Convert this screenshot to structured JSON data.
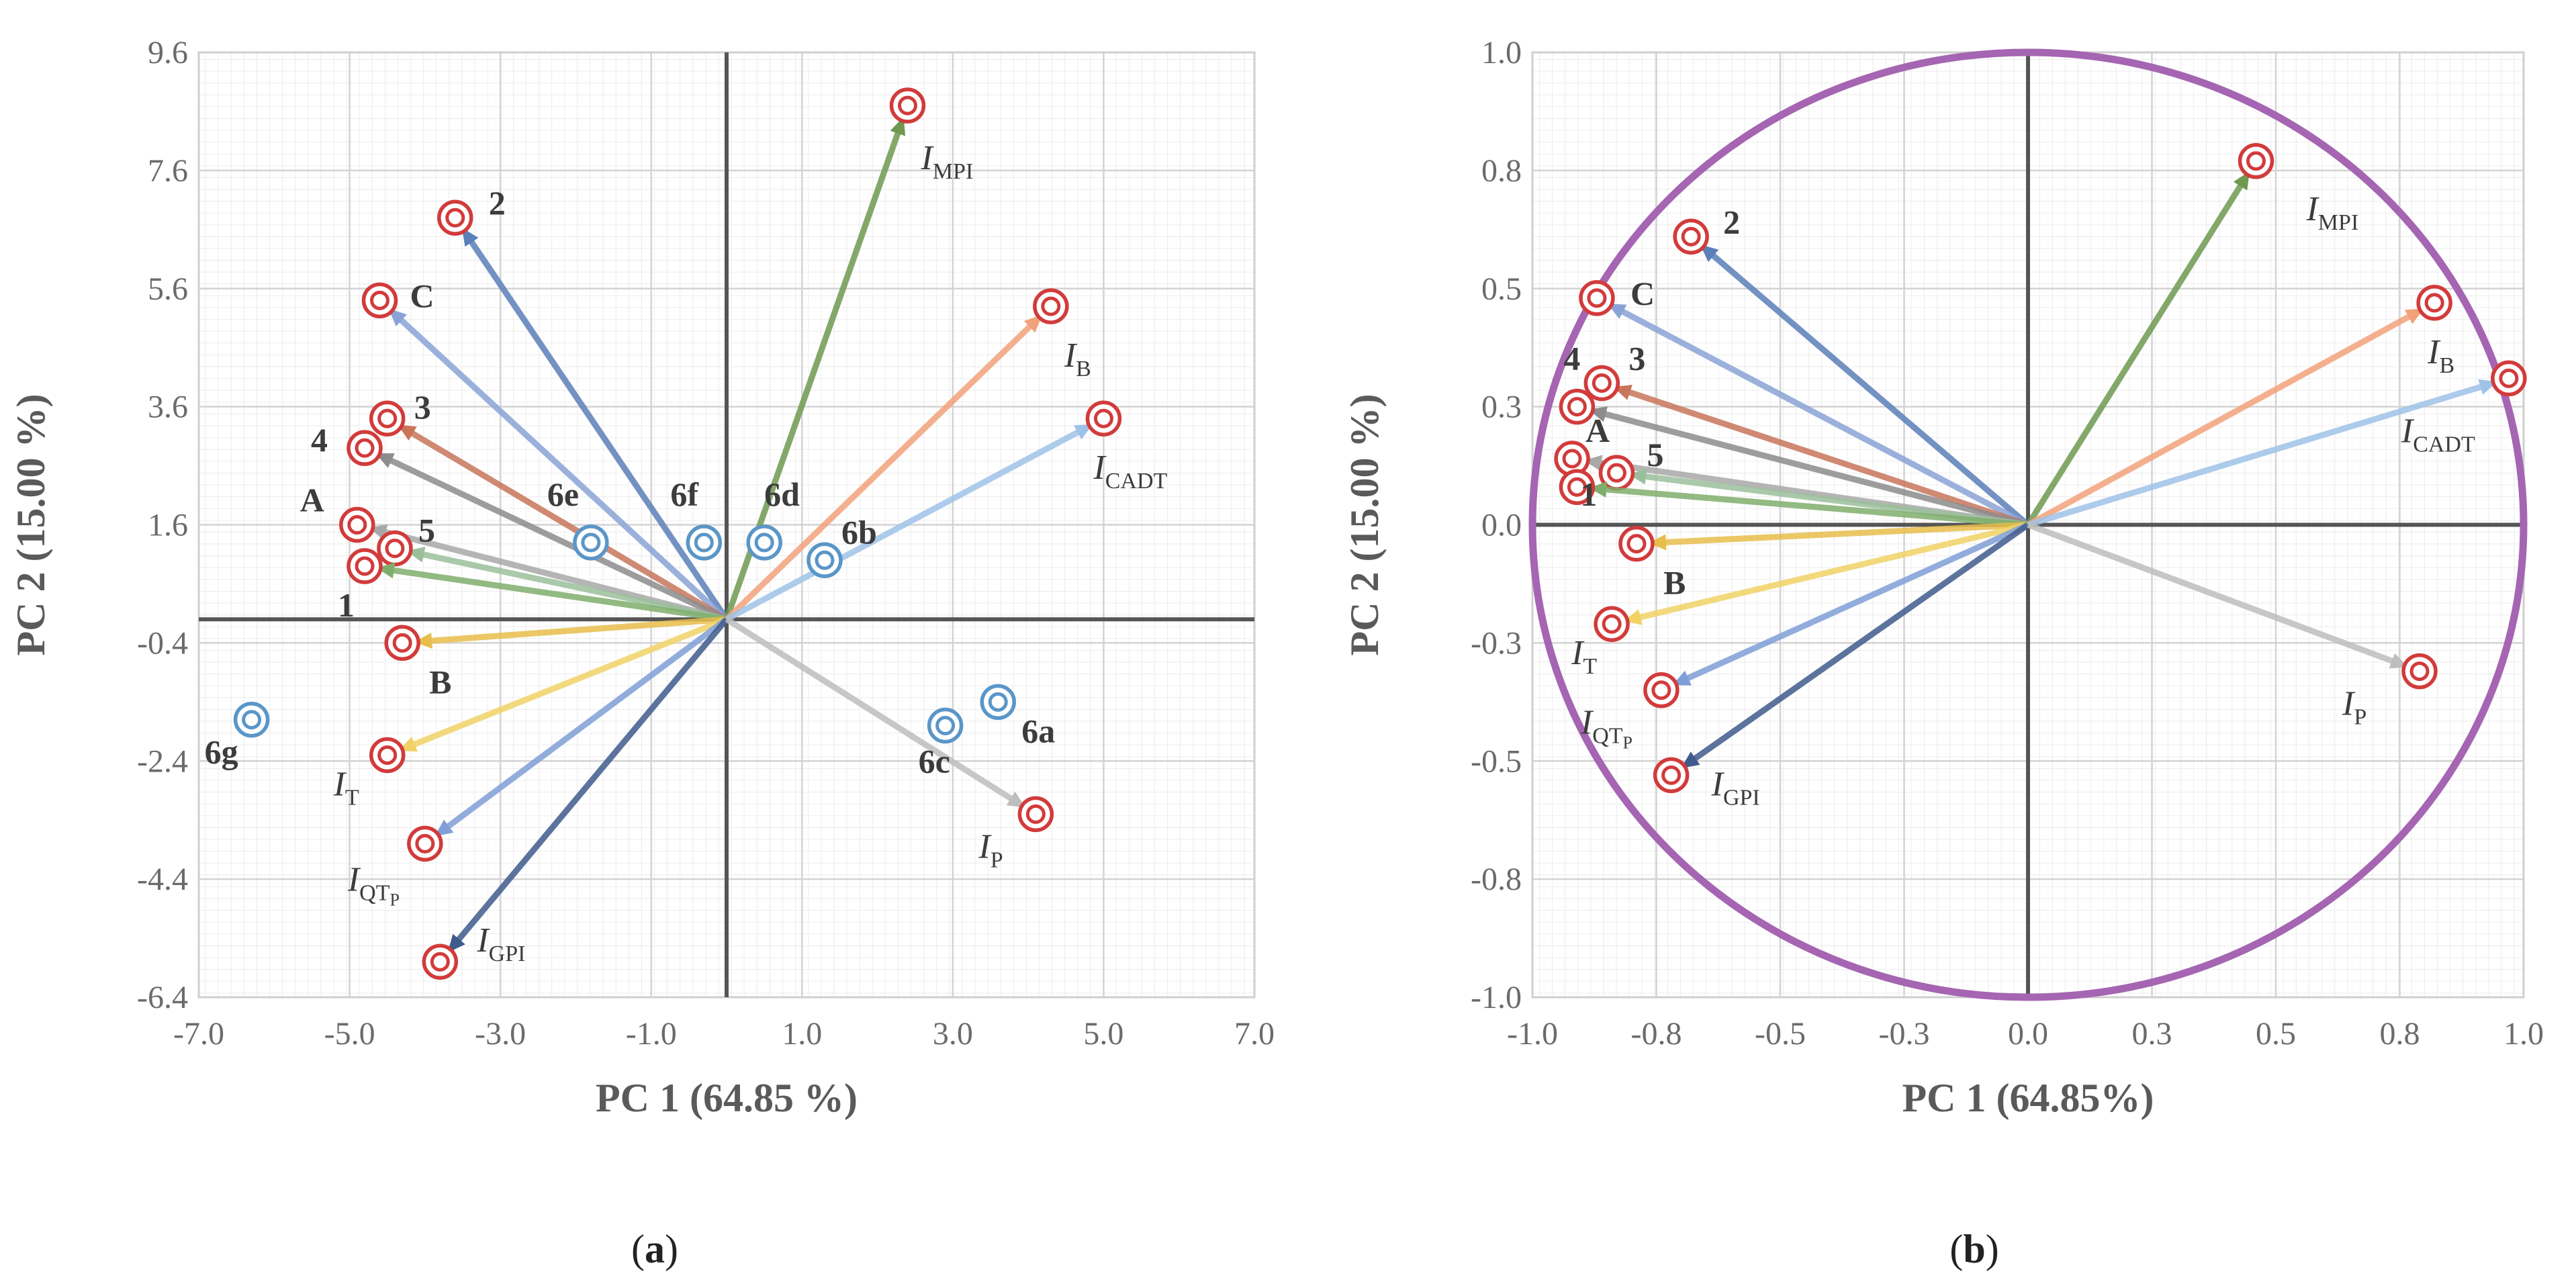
{
  "chart_data": [
    {
      "type": "scatter",
      "panel": "a",
      "caption": {
        "open": "(",
        "letter": "a",
        "close": ")"
      },
      "xlabel": "PC 1 (64.85 %)",
      "ylabel": "PC 2 (15.00 %)",
      "xlim": [
        -7.0,
        7.0
      ],
      "ylim": [
        -6.4,
        9.6
      ],
      "xticks": [
        "-7.0",
        "-5.0",
        "-3.0",
        "-1.0",
        "1.0",
        "3.0",
        "5.0",
        "7.0"
      ],
      "yticks": [
        "9.6",
        "7.6",
        "5.6",
        "3.6",
        "1.6",
        "-0.4",
        "-2.4",
        "-4.4",
        "-6.4"
      ],
      "vectors": [
        {
          "label": "2",
          "x": -3.6,
          "y": 6.8,
          "color": "#5b7fb9"
        },
        {
          "label": "C",
          "x": -4.6,
          "y": 5.4,
          "color": "#8aa3d6"
        },
        {
          "label": "3",
          "x": -4.5,
          "y": 3.4,
          "color": "#c8755a"
        },
        {
          "label": "4",
          "x": -4.8,
          "y": 2.9,
          "color": "#8c8c8c"
        },
        {
          "label": "A",
          "x": -4.9,
          "y": 1.6,
          "color": "#a8a8a8"
        },
        {
          "label": "5",
          "x": -4.4,
          "y": 1.2,
          "color": "#9bbf9b"
        },
        {
          "label": "1",
          "x": -4.8,
          "y": 0.9,
          "color": "#7fae6c"
        },
        {
          "label": "B",
          "x": -4.3,
          "y": -0.4,
          "color": "#e8bd4b"
        },
        {
          "label": "IT",
          "x": -4.5,
          "y": -2.3,
          "color": "#f1d266"
        },
        {
          "label": "IQTP",
          "x": -4.0,
          "y": -3.8,
          "color": "#7f9fd6"
        },
        {
          "label": "IGPI",
          "x": -3.8,
          "y": -5.8,
          "color": "#3f5a8c"
        },
        {
          "label": "IMPI",
          "x": 2.4,
          "y": 8.7,
          "color": "#6f9950"
        },
        {
          "label": "IB",
          "x": 4.3,
          "y": 5.3,
          "color": "#f2a27a"
        },
        {
          "label": "ICADT",
          "x": 5.0,
          "y": 3.4,
          "color": "#9fc2e8"
        },
        {
          "label": "IP",
          "x": 4.1,
          "y": -3.3,
          "color": "#bdbdbd"
        }
      ],
      "scores": [
        {
          "label": "6a",
          "x": 3.6,
          "y": -1.4
        },
        {
          "label": "6b",
          "x": 1.3,
          "y": 1.0
        },
        {
          "label": "6c",
          "x": 2.9,
          "y": -1.8
        },
        {
          "label": "6d",
          "x": 0.5,
          "y": 1.3
        },
        {
          "label": "6e",
          "x": -1.8,
          "y": 1.3
        },
        {
          "label": "6f",
          "x": -0.3,
          "y": 1.3
        },
        {
          "label": "6g",
          "x": -6.3,
          "y": -1.7
        }
      ]
    },
    {
      "type": "scatter",
      "panel": "b",
      "caption": {
        "open": "(",
        "letter": "b",
        "close": ")"
      },
      "xlabel": "PC 1 (64.85%)",
      "ylabel": "PC 2 (15.00 %)",
      "xlim": [
        -1.0,
        1.0
      ],
      "ylim": [
        -1.0,
        1.0
      ],
      "xticks": [
        "-1.0",
        "-0.8",
        "-0.5",
        "-0.3",
        "0.0",
        "0.3",
        "0.5",
        "0.8",
        "1.0"
      ],
      "yticks": [
        "1.0",
        "0.8",
        "0.5",
        "0.3",
        "0.0",
        "-0.3",
        "-0.5",
        "-0.8",
        "-1.0"
      ],
      "circle": "correlation circle (radius 1)",
      "vectors": [
        {
          "label": "2",
          "x": -0.68,
          "y": 0.61,
          "color": "#5b7fb9"
        },
        {
          "label": "C",
          "x": -0.87,
          "y": 0.48,
          "color": "#8aa3d6"
        },
        {
          "label": "3",
          "x": -0.86,
          "y": 0.3,
          "color": "#c8755a"
        },
        {
          "label": "4",
          "x": -0.91,
          "y": 0.25,
          "color": "#8c8c8c"
        },
        {
          "label": "A",
          "x": -0.92,
          "y": 0.14,
          "color": "#a8a8a8"
        },
        {
          "label": "5",
          "x": -0.83,
          "y": 0.11,
          "color": "#9bbf9b"
        },
        {
          "label": "1",
          "x": -0.91,
          "y": 0.08,
          "color": "#7fae6c"
        },
        {
          "label": "B",
          "x": -0.79,
          "y": -0.04,
          "color": "#e8bd4b"
        },
        {
          "label": "IT",
          "x": -0.84,
          "y": -0.21,
          "color": "#f1d266"
        },
        {
          "label": "IQTP",
          "x": -0.74,
          "y": -0.35,
          "color": "#7f9fd6"
        },
        {
          "label": "IGPI",
          "x": -0.72,
          "y": -0.53,
          "color": "#3f5a8c"
        },
        {
          "label": "IMPI",
          "x": 0.46,
          "y": 0.77,
          "color": "#6f9950"
        },
        {
          "label": "IB",
          "x": 0.82,
          "y": 0.47,
          "color": "#f2a27a"
        },
        {
          "label": "ICADT",
          "x": 0.97,
          "y": 0.31,
          "color": "#9fc2e8"
        },
        {
          "label": "IP",
          "x": 0.79,
          "y": -0.31,
          "color": "#bdbdbd"
        }
      ]
    }
  ]
}
